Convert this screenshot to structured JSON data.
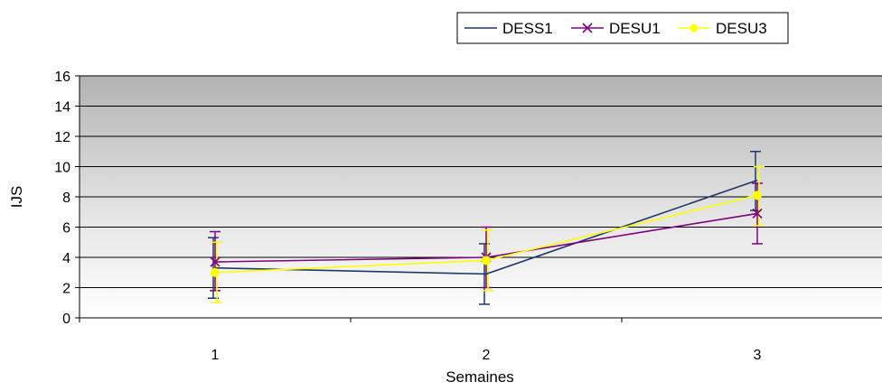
{
  "chart_data": {
    "type": "line",
    "title": "",
    "xlabel": "Semaines",
    "ylabel": "IJS",
    "categories": [
      "1",
      "2",
      "3"
    ],
    "y_ticks": [
      "0",
      "2",
      "4",
      "6",
      "8",
      "10",
      "12",
      "14",
      "16"
    ],
    "ylim": [
      0,
      16
    ],
    "grid": true,
    "legend_position": "top-right",
    "error_bars": true,
    "series": [
      {
        "name": "DESS1",
        "color": "#1f3a68",
        "marker": "none",
        "values": [
          3.3,
          2.9,
          9.1
        ],
        "error_low": [
          1.3,
          0.9,
          7.1
        ],
        "error_high": [
          5.3,
          4.9,
          11.0
        ]
      },
      {
        "name": "DESU1",
        "color": "#800080",
        "marker": "x",
        "values": [
          3.7,
          4.0,
          6.9
        ],
        "error_low": [
          1.8,
          2.0,
          4.9
        ],
        "error_high": [
          5.7,
          6.0,
          8.9
        ]
      },
      {
        "name": "DESU3",
        "color": "#ffff00",
        "marker": "circle",
        "values": [
          3.0,
          3.8,
          8.1
        ],
        "error_low": [
          1.0,
          1.8,
          6.1
        ],
        "error_high": [
          5.0,
          5.8,
          10.0
        ]
      }
    ]
  }
}
